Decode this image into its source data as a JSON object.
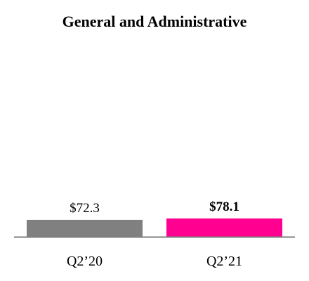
{
  "chart_data": {
    "type": "bar",
    "title": "General and Administrative",
    "categories": [
      "Q2’20",
      "Q2’21"
    ],
    "values": [
      72.3,
      78.1
    ],
    "value_labels": [
      "$72.3",
      "$78.1"
    ],
    "emphasized": [
      false,
      true
    ],
    "colors": [
      "#808080",
      "#ff0090"
    ],
    "axis_color": "#7f7f7f",
    "xlabel": "",
    "ylabel": "",
    "ylim": [
      0,
      78.1
    ],
    "grid": false,
    "legend": "none"
  }
}
